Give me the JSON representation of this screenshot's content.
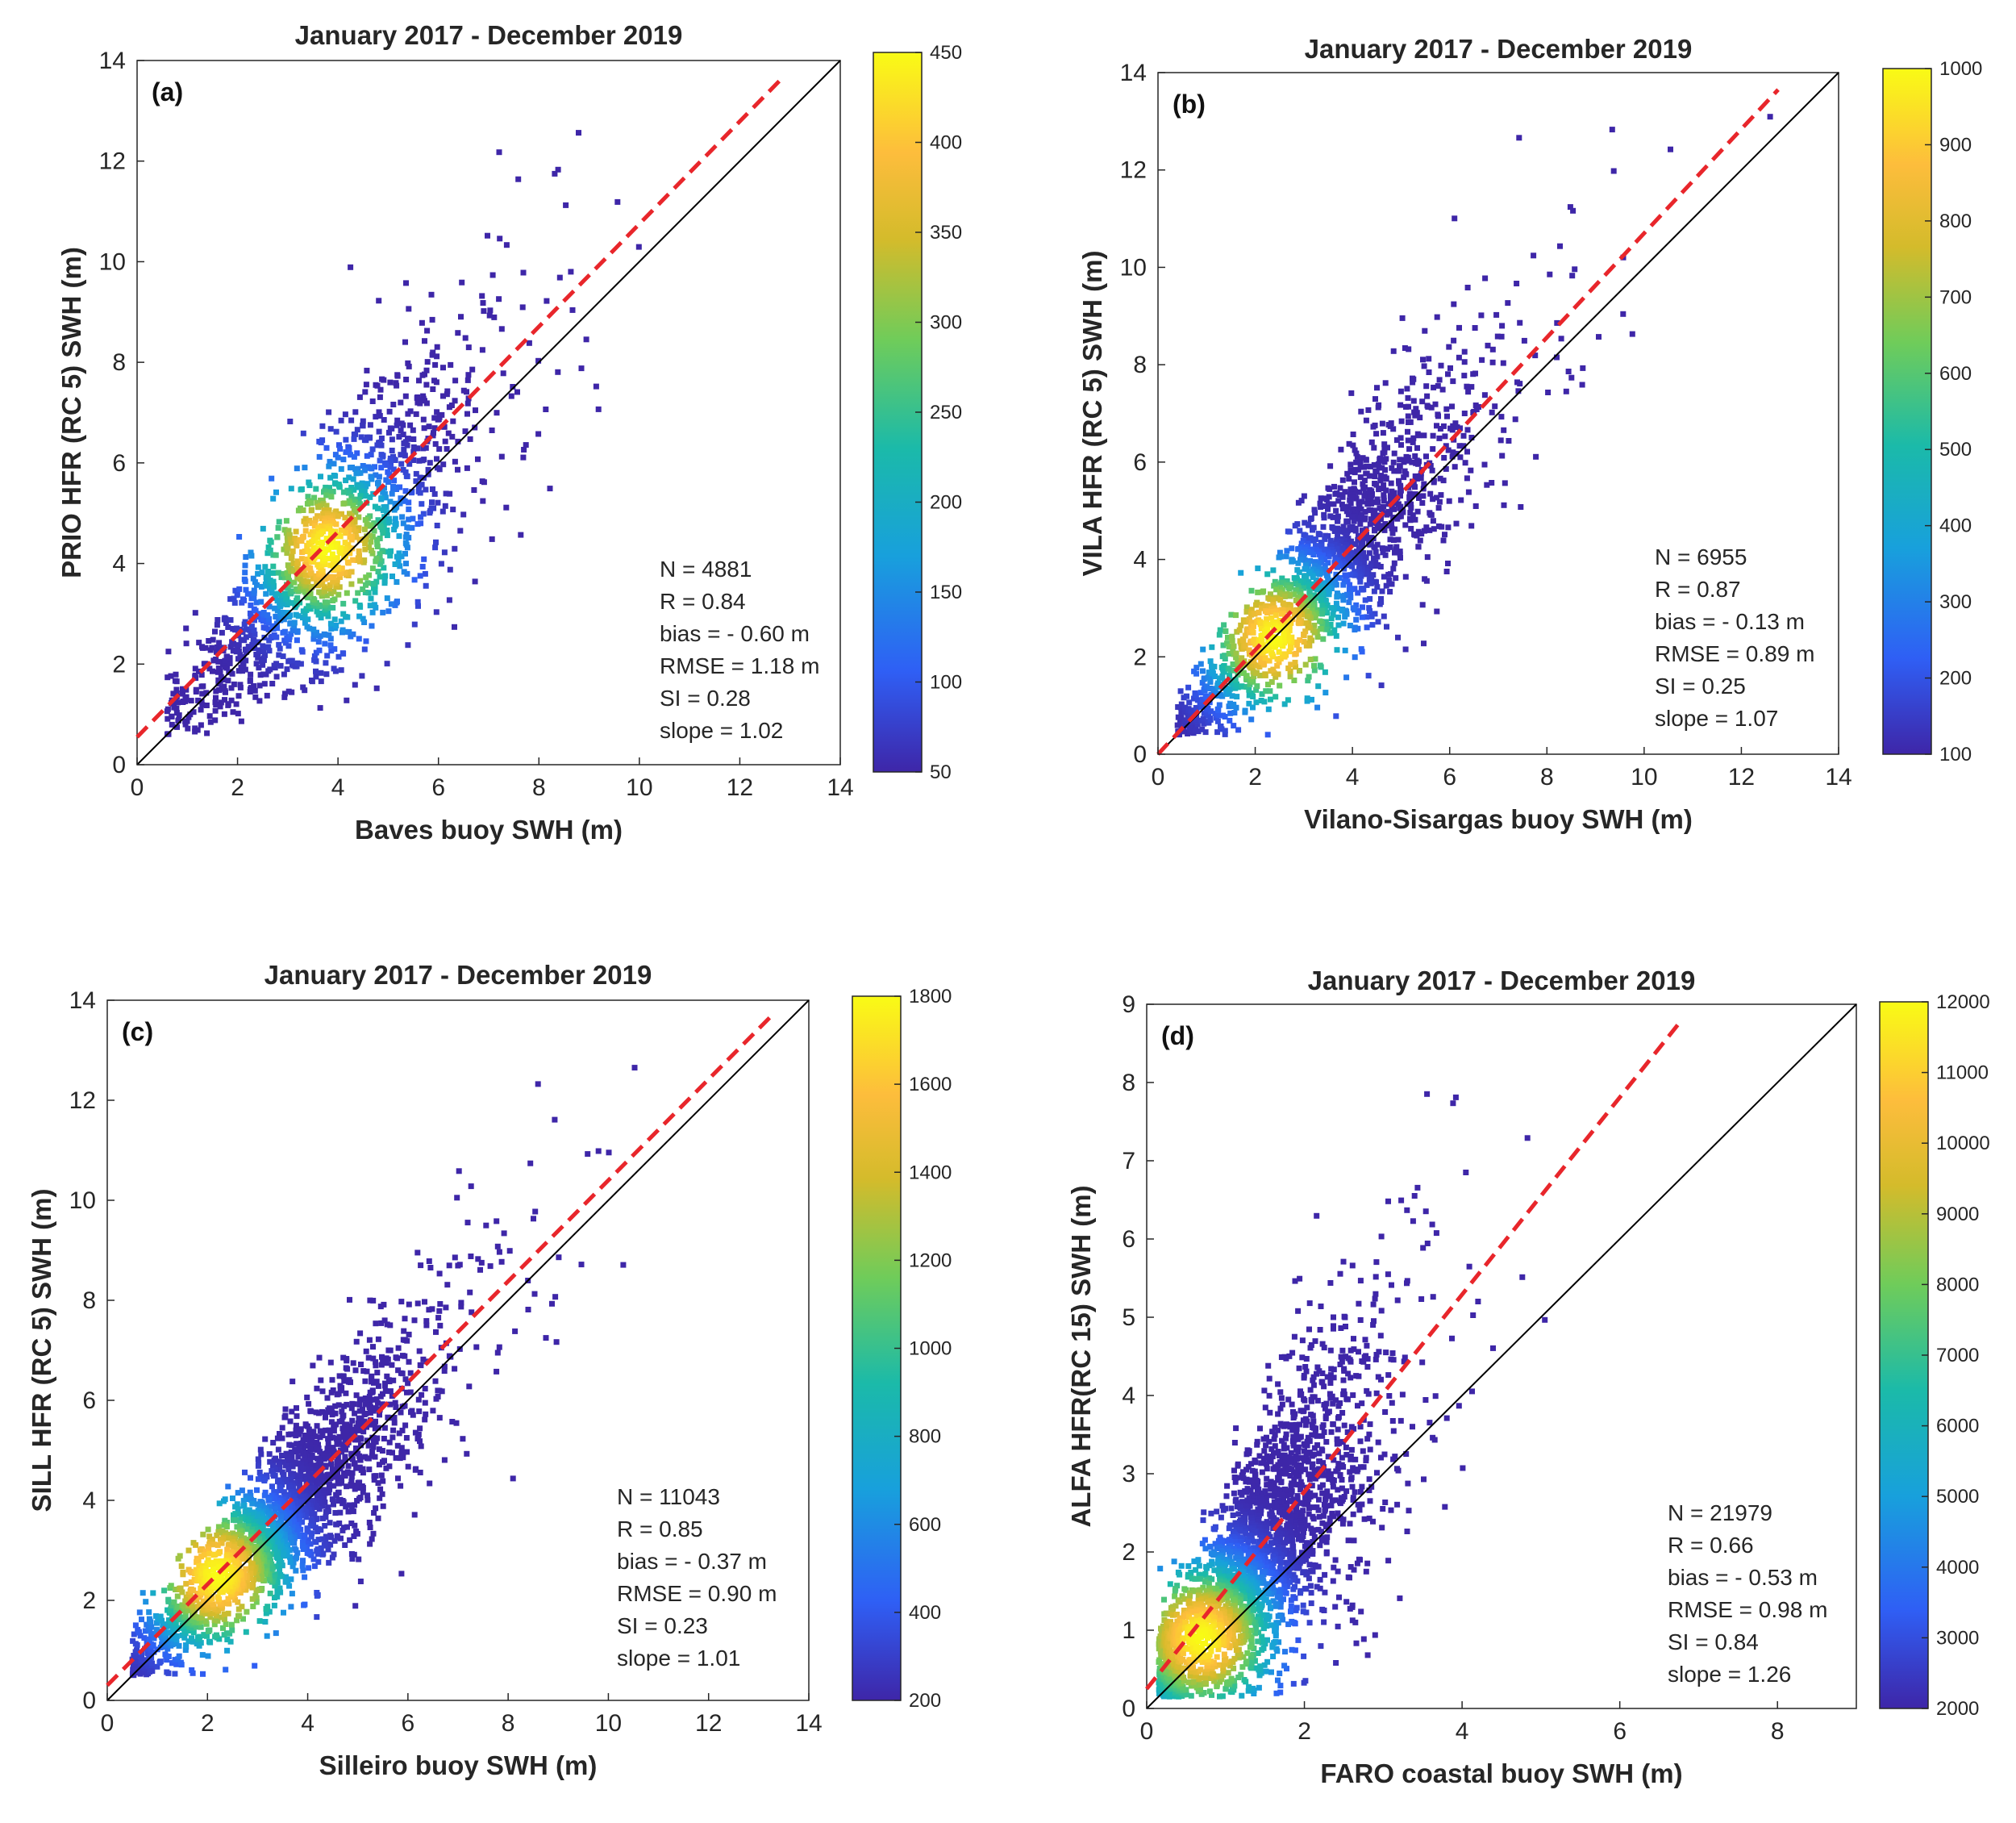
{
  "figure": {
    "colors": {
      "identity_line": "#000000",
      "regression_line": "#e8262b",
      "axes": "#262626",
      "colormap": [
        "#3e26a8",
        "#2f5ff5",
        "#18a0dc",
        "#1bbaa9",
        "#6fcc5a",
        "#d4bb2b",
        "#fdbd3c",
        "#f9fb15"
      ]
    }
  },
  "chart_data": [
    {
      "id": "a",
      "type": "scatter",
      "title": "January 2017 - December 2019",
      "panel_label": "(a)",
      "xlabel": "Baves buoy SWH (m)",
      "ylabel": "PRIO HFR (RC 5) SWH (m)",
      "xlim": [
        0,
        14
      ],
      "ylim": [
        0,
        14
      ],
      "xticks": [
        0,
        2,
        4,
        6,
        8,
        10,
        12,
        14
      ],
      "yticks": [
        0,
        2,
        4,
        6,
        8,
        10,
        12,
        14
      ],
      "colorbar": {
        "min": 50,
        "max": 450,
        "ticks": [
          50,
          100,
          150,
          200,
          250,
          300,
          350,
          400,
          450
        ]
      },
      "density_center": [
        3.8,
        4.3
      ],
      "cloud": {
        "n": 1500,
        "seed": 11,
        "mean": 3.4,
        "sd": 1.35,
        "slope": 1.02,
        "offset": 0.6,
        "noise": 0.95,
        "min": 0.6
      },
      "fit": {
        "slope": 1.02,
        "intercept": 0.55
      },
      "stats": [
        "N = 4881",
        "R = 0.84",
        "bias = - 0.60 m",
        "RMSE = 1.18 m",
        "SI = 0.28",
        "slope = 1.02"
      ]
    },
    {
      "id": "b",
      "type": "scatter",
      "title": "January 2017 - December 2019",
      "panel_label": "(b)",
      "xlabel": "Vilano-Sisargas buoy SWH (m)",
      "ylabel": "VILA HFR (RC 5) SWH (m)",
      "xlim": [
        0,
        14
      ],
      "ylim": [
        0,
        14
      ],
      "xticks": [
        0,
        2,
        4,
        6,
        8,
        10,
        12,
        14
      ],
      "yticks": [
        0,
        2,
        4,
        6,
        8,
        10,
        12,
        14
      ],
      "colorbar": {
        "min": 100,
        "max": 1000,
        "ticks": [
          100,
          200,
          300,
          400,
          500,
          600,
          700,
          800,
          900,
          1000
        ]
      },
      "density_center": [
        2.4,
        2.4
      ],
      "cloud": {
        "n": 1700,
        "seed": 23,
        "mean": 3.0,
        "sd": 1.45,
        "slope": 1.07,
        "offset": 0.0,
        "noise": 0.85,
        "min": 0.4
      },
      "fit": {
        "slope": 1.07,
        "intercept": 0.0
      },
      "stats": [
        "N = 6955",
        "R = 0.87",
        "bias = - 0.13 m",
        "RMSE = 0.89 m",
        "SI = 0.25",
        "slope = 1.07"
      ]
    },
    {
      "id": "c",
      "type": "scatter",
      "title": "January 2017 - December 2019",
      "panel_label": "(c)",
      "xlabel": "Silleiro buoy SWH (m)",
      "ylabel": "SILL HFR (RC 5) SWH (m)",
      "xlim": [
        0,
        14
      ],
      "ylim": [
        0,
        14
      ],
      "xticks": [
        0,
        2,
        4,
        6,
        8,
        10,
        12,
        14
      ],
      "yticks": [
        0,
        2,
        4,
        6,
        8,
        10,
        12,
        14
      ],
      "colorbar": {
        "min": 200,
        "max": 1800,
        "ticks": [
          200,
          400,
          600,
          800,
          1000,
          1200,
          1400,
          1600,
          1800
        ]
      },
      "density_center": [
        2.2,
        2.5
      ],
      "cloud": {
        "n": 2200,
        "seed": 37,
        "mean": 3.0,
        "sd": 1.4,
        "slope": 1.01,
        "offset": 0.3,
        "noise": 0.75,
        "min": 0.5
      },
      "fit": {
        "slope": 1.01,
        "intercept": 0.3
      },
      "stats": [
        "N = 11043",
        "R = 0.85",
        "bias = - 0.37 m",
        "RMSE = 0.90 m",
        "SI = 0.23",
        "slope = 1.01"
      ]
    },
    {
      "id": "d",
      "type": "scatter",
      "title": "January 2017 - December 2019",
      "panel_label": "(d)",
      "xlabel": "FARO coastal buoy SWH (m)",
      "ylabel": "ALFA HFR(RC 15) SWH (m)",
      "xlim": [
        0,
        9
      ],
      "ylim": [
        0,
        9
      ],
      "xticks": [
        0,
        2,
        4,
        6,
        8
      ],
      "yticks": [
        0,
        1,
        2,
        3,
        4,
        5,
        6,
        7,
        8,
        9
      ],
      "colorbar": {
        "min": 2000,
        "max": 12000,
        "ticks": [
          2000,
          3000,
          4000,
          5000,
          6000,
          7000,
          8000,
          9000,
          10000,
          11000,
          12000
        ]
      },
      "density_center": [
        0.7,
        0.9
      ],
      "cloud": {
        "n": 2600,
        "seed": 53,
        "mean": 1.1,
        "sd": 0.75,
        "slope": 1.26,
        "offset": 0.3,
        "noise": 0.95,
        "min": 0.15
      },
      "fit": {
        "slope": 1.26,
        "intercept": 0.25
      },
      "stats": [
        "N = 21979",
        "R = 0.66",
        "bias = - 0.53 m",
        "RMSE = 0.98 m",
        "SI = 0.84",
        "slope = 1.26"
      ]
    }
  ]
}
